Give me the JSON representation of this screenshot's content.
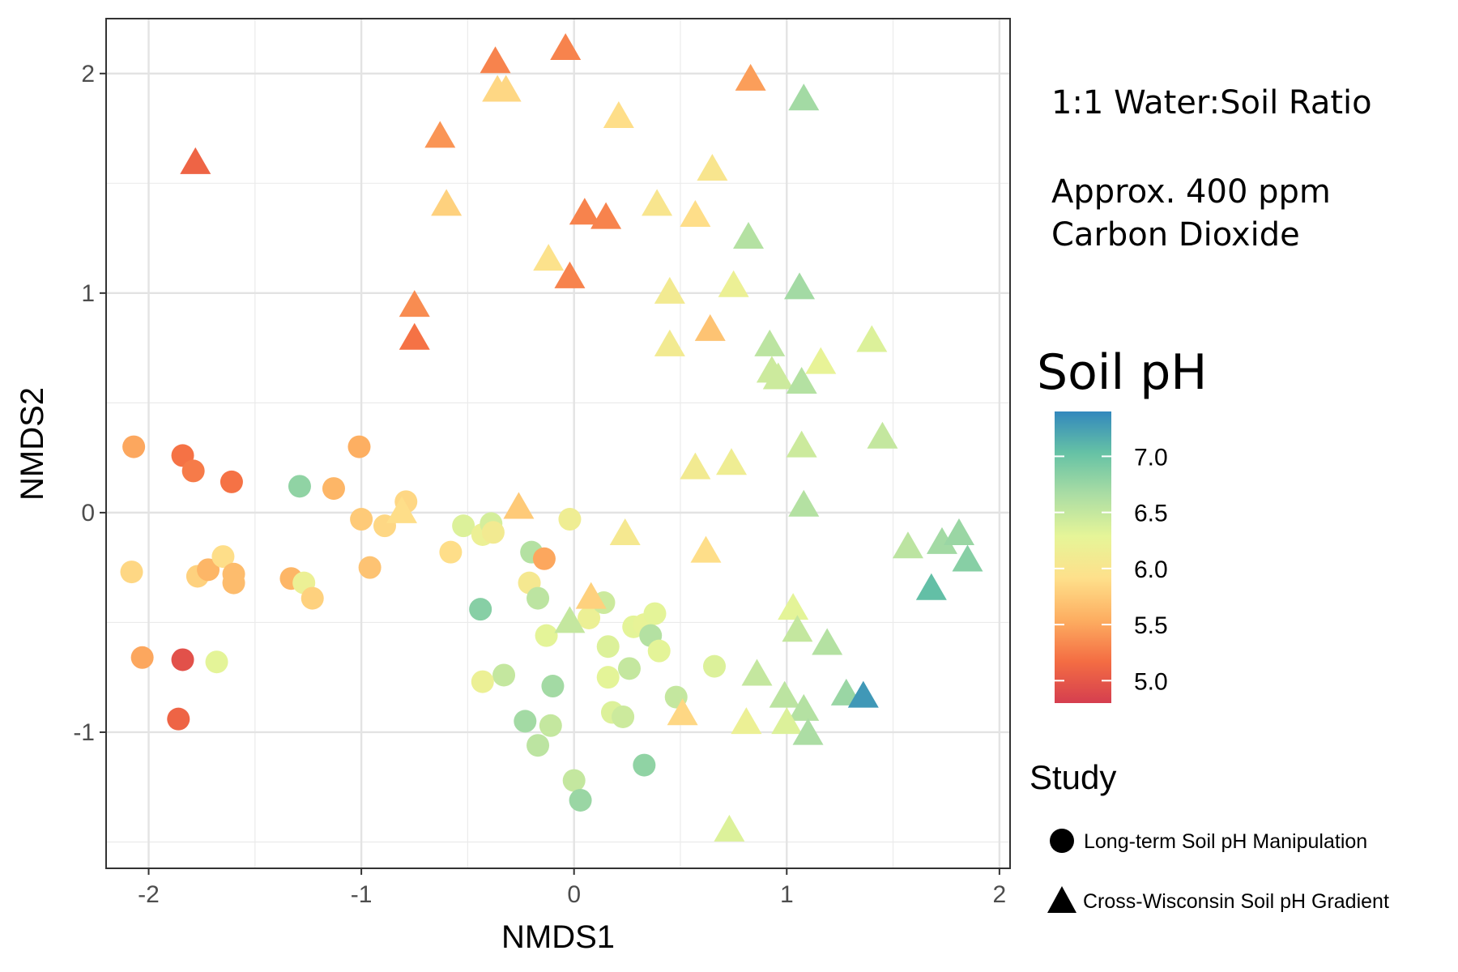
{
  "chart_data": {
    "type": "scatter",
    "title": "",
    "xlabel": "NMDS1",
    "ylabel": "NMDS2",
    "xlim": [
      -2.2,
      2.05
    ],
    "ylim": [
      -1.62,
      2.25
    ],
    "xticks": [
      -2,
      -1,
      0,
      1,
      2
    ],
    "yticks": [
      -1,
      0,
      1,
      2
    ],
    "xtick_labels": [
      "-2",
      "-1",
      "0",
      "1",
      "2"
    ],
    "ytick_labels": [
      "-1",
      "0",
      "1",
      "2"
    ],
    "grid": true,
    "annotations": [
      "1:1 Water:Soil Ratio",
      "Approx. 400 ppm",
      "Carbon Dioxide"
    ],
    "color_legend": {
      "title": "Soil pH",
      "range": [
        4.8,
        7.4
      ],
      "ticks": [
        5.0,
        5.5,
        6.0,
        6.5,
        7.0
      ],
      "tick_labels": [
        "5.0",
        "5.5",
        "6.0",
        "6.5",
        "7.0"
      ],
      "stops": [
        "#d53e4f",
        "#f46d43",
        "#fdae61",
        "#fee08b",
        "#e6f598",
        "#abdda4",
        "#66c2a5",
        "#3288bd"
      ]
    },
    "shape_legend": {
      "title": "Study",
      "entries": [
        {
          "label": "Long-term Soil pH Manipulation",
          "shape": "circle"
        },
        {
          "label": "Cross-Wisconsin Soil pH Gradient",
          "shape": "triangle"
        }
      ]
    },
    "series": [
      {
        "name": "Long-term Soil pH Manipulation",
        "shape": "circle",
        "points": [
          {
            "x": -2.07,
            "y": 0.3,
            "ph": 5.5
          },
          {
            "x": -1.84,
            "y": 0.26,
            "ph": 5.2
          },
          {
            "x": -1.79,
            "y": 0.19,
            "ph": 5.25
          },
          {
            "x": -1.61,
            "y": 0.14,
            "ph": 5.2
          },
          {
            "x": -1.29,
            "y": 0.12,
            "ph": 6.8
          },
          {
            "x": -1.13,
            "y": 0.11,
            "ph": 5.6
          },
          {
            "x": -1.01,
            "y": 0.3,
            "ph": 5.55
          },
          {
            "x": -2.08,
            "y": -0.27,
            "ph": 5.85
          },
          {
            "x": -1.77,
            "y": -0.29,
            "ph": 5.8
          },
          {
            "x": -1.72,
            "y": -0.26,
            "ph": 5.6
          },
          {
            "x": -1.65,
            "y": -0.2,
            "ph": 5.9
          },
          {
            "x": -1.6,
            "y": -0.28,
            "ph": 5.65
          },
          {
            "x": -1.6,
            "y": -0.32,
            "ph": 5.65
          },
          {
            "x": -1.33,
            "y": -0.3,
            "ph": 5.6
          },
          {
            "x": -1.27,
            "y": -0.32,
            "ph": 6.2
          },
          {
            "x": -1.23,
            "y": -0.39,
            "ph": 5.8
          },
          {
            "x": -1.0,
            "y": -0.03,
            "ph": 5.75
          },
          {
            "x": -0.96,
            "y": -0.25,
            "ph": 5.7
          },
          {
            "x": -0.89,
            "y": -0.06,
            "ph": 5.85
          },
          {
            "x": -0.79,
            "y": 0.05,
            "ph": 5.85
          },
          {
            "x": -2.03,
            "y": -0.66,
            "ph": 5.5
          },
          {
            "x": -1.84,
            "y": -0.67,
            "ph": 4.95
          },
          {
            "x": -1.68,
            "y": -0.68,
            "ph": 6.3
          },
          {
            "x": -1.86,
            "y": -0.94,
            "ph": 5.1
          },
          {
            "x": -0.52,
            "y": -0.06,
            "ph": 6.35
          },
          {
            "x": -0.43,
            "y": -0.1,
            "ph": 6.2
          },
          {
            "x": -0.39,
            "y": -0.05,
            "ph": 6.4
          },
          {
            "x": -0.38,
            "y": -0.09,
            "ph": 6.1
          },
          {
            "x": -0.58,
            "y": -0.18,
            "ph": 5.9
          },
          {
            "x": -0.02,
            "y": -0.03,
            "ph": 6.15
          },
          {
            "x": -0.2,
            "y": -0.18,
            "ph": 6.6
          },
          {
            "x": -0.14,
            "y": -0.21,
            "ph": 5.5
          },
          {
            "x": -0.21,
            "y": -0.32,
            "ph": 6.05
          },
          {
            "x": -0.17,
            "y": -0.39,
            "ph": 6.55
          },
          {
            "x": -0.44,
            "y": -0.44,
            "ph": 6.85
          },
          {
            "x": -0.13,
            "y": -0.56,
            "ph": 6.3
          },
          {
            "x": 0.07,
            "y": -0.48,
            "ph": 6.2
          },
          {
            "x": 0.14,
            "y": -0.41,
            "ph": 6.45
          },
          {
            "x": 0.28,
            "y": -0.52,
            "ph": 6.3
          },
          {
            "x": 0.33,
            "y": -0.51,
            "ph": 6.25
          },
          {
            "x": 0.38,
            "y": -0.46,
            "ph": 6.3
          },
          {
            "x": 0.36,
            "y": -0.56,
            "ph": 6.6
          },
          {
            "x": 0.4,
            "y": -0.63,
            "ph": 6.3
          },
          {
            "x": 0.16,
            "y": -0.61,
            "ph": 6.35
          },
          {
            "x": 0.16,
            "y": -0.75,
            "ph": 6.3
          },
          {
            "x": 0.26,
            "y": -0.71,
            "ph": 6.5
          },
          {
            "x": -0.33,
            "y": -0.74,
            "ph": 6.5
          },
          {
            "x": -0.43,
            "y": -0.77,
            "ph": 6.2
          },
          {
            "x": -0.1,
            "y": -0.79,
            "ph": 6.7
          },
          {
            "x": 0.48,
            "y": -0.84,
            "ph": 6.5
          },
          {
            "x": 0.66,
            "y": -0.7,
            "ph": 6.35
          },
          {
            "x": 0.18,
            "y": -0.91,
            "ph": 6.35
          },
          {
            "x": 0.23,
            "y": -0.93,
            "ph": 6.45
          },
          {
            "x": -0.23,
            "y": -0.95,
            "ph": 6.7
          },
          {
            "x": -0.11,
            "y": -0.97,
            "ph": 6.5
          },
          {
            "x": -0.17,
            "y": -1.06,
            "ph": 6.55
          },
          {
            "x": 0.33,
            "y": -1.15,
            "ph": 6.8
          },
          {
            "x": 0.0,
            "y": -1.22,
            "ph": 6.5
          },
          {
            "x": 0.03,
            "y": -1.31,
            "ph": 6.75
          }
        ]
      },
      {
        "name": "Cross-Wisconsin Soil pH Gradient",
        "shape": "triangle",
        "points": [
          {
            "x": -1.78,
            "y": 1.59,
            "ph": 5.1
          },
          {
            "x": -0.37,
            "y": 2.05,
            "ph": 5.3
          },
          {
            "x": -0.04,
            "y": 2.11,
            "ph": 5.3
          },
          {
            "x": -0.36,
            "y": 1.92,
            "ph": 5.85
          },
          {
            "x": -0.32,
            "y": 1.92,
            "ph": 5.85
          },
          {
            "x": 0.83,
            "y": 1.97,
            "ph": 5.45
          },
          {
            "x": 1.08,
            "y": 1.88,
            "ph": 6.7
          },
          {
            "x": -0.63,
            "y": 1.71,
            "ph": 5.4
          },
          {
            "x": 0.21,
            "y": 1.8,
            "ph": 5.9
          },
          {
            "x": 0.65,
            "y": 1.56,
            "ph": 6.0
          },
          {
            "x": -0.6,
            "y": 1.4,
            "ph": 5.8
          },
          {
            "x": 0.05,
            "y": 1.36,
            "ph": 5.3
          },
          {
            "x": 0.15,
            "y": 1.34,
            "ph": 5.3
          },
          {
            "x": 0.39,
            "y": 1.4,
            "ph": 6.0
          },
          {
            "x": 0.57,
            "y": 1.35,
            "ph": 5.9
          },
          {
            "x": 0.82,
            "y": 1.25,
            "ph": 6.6
          },
          {
            "x": -0.12,
            "y": 1.15,
            "ph": 5.95
          },
          {
            "x": -0.02,
            "y": 1.07,
            "ph": 5.3
          },
          {
            "x": 0.45,
            "y": 1.0,
            "ph": 6.1
          },
          {
            "x": 0.75,
            "y": 1.03,
            "ph": 6.2
          },
          {
            "x": 1.06,
            "y": 1.02,
            "ph": 6.7
          },
          {
            "x": -0.75,
            "y": 0.94,
            "ph": 5.35
          },
          {
            "x": -0.75,
            "y": 0.79,
            "ph": 5.2
          },
          {
            "x": 0.64,
            "y": 0.83,
            "ph": 5.7
          },
          {
            "x": 0.45,
            "y": 0.76,
            "ph": 6.1
          },
          {
            "x": 0.92,
            "y": 0.76,
            "ph": 6.55
          },
          {
            "x": 1.4,
            "y": 0.78,
            "ph": 6.35
          },
          {
            "x": 1.16,
            "y": 0.68,
            "ph": 6.25
          },
          {
            "x": 0.93,
            "y": 0.64,
            "ph": 6.45
          },
          {
            "x": 0.96,
            "y": 0.61,
            "ph": 6.45
          },
          {
            "x": 1.07,
            "y": 0.59,
            "ph": 6.6
          },
          {
            "x": 1.07,
            "y": 0.3,
            "ph": 6.45
          },
          {
            "x": 1.45,
            "y": 0.34,
            "ph": 6.5
          },
          {
            "x": 0.57,
            "y": 0.2,
            "ph": 6.1
          },
          {
            "x": 0.74,
            "y": 0.22,
            "ph": 6.15
          },
          {
            "x": 1.08,
            "y": 0.03,
            "ph": 6.6
          },
          {
            "x": -0.26,
            "y": 0.02,
            "ph": 5.75
          },
          {
            "x": 0.24,
            "y": -0.1,
            "ph": 6.05
          },
          {
            "x": 0.62,
            "y": -0.18,
            "ph": 5.9
          },
          {
            "x": -0.81,
            "y": 0.0,
            "ph": 5.9
          },
          {
            "x": 1.57,
            "y": -0.16,
            "ph": 6.55
          },
          {
            "x": 1.73,
            "y": -0.14,
            "ph": 6.7
          },
          {
            "x": 1.81,
            "y": -0.1,
            "ph": 6.75
          },
          {
            "x": 1.85,
            "y": -0.22,
            "ph": 6.85
          },
          {
            "x": 1.68,
            "y": -0.35,
            "ph": 7.05
          },
          {
            "x": 0.08,
            "y": -0.39,
            "ph": 5.8
          },
          {
            "x": -0.02,
            "y": -0.5,
            "ph": 6.5
          },
          {
            "x": 1.03,
            "y": -0.44,
            "ph": 6.3
          },
          {
            "x": 1.05,
            "y": -0.54,
            "ph": 6.5
          },
          {
            "x": 1.19,
            "y": -0.6,
            "ph": 6.6
          },
          {
            "x": 0.86,
            "y": -0.74,
            "ph": 6.5
          },
          {
            "x": 0.99,
            "y": -0.84,
            "ph": 6.55
          },
          {
            "x": 1.08,
            "y": -0.9,
            "ph": 6.6
          },
          {
            "x": 1.28,
            "y": -0.83,
            "ph": 6.75
          },
          {
            "x": 1.36,
            "y": -0.84,
            "ph": 7.3
          },
          {
            "x": 0.51,
            "y": -0.92,
            "ph": 5.85
          },
          {
            "x": 0.81,
            "y": -0.96,
            "ph": 6.2
          },
          {
            "x": 1.0,
            "y": -0.96,
            "ph": 6.35
          },
          {
            "x": 1.1,
            "y": -1.01,
            "ph": 6.65
          },
          {
            "x": 0.73,
            "y": -1.45,
            "ph": 6.35
          }
        ]
      }
    ]
  }
}
